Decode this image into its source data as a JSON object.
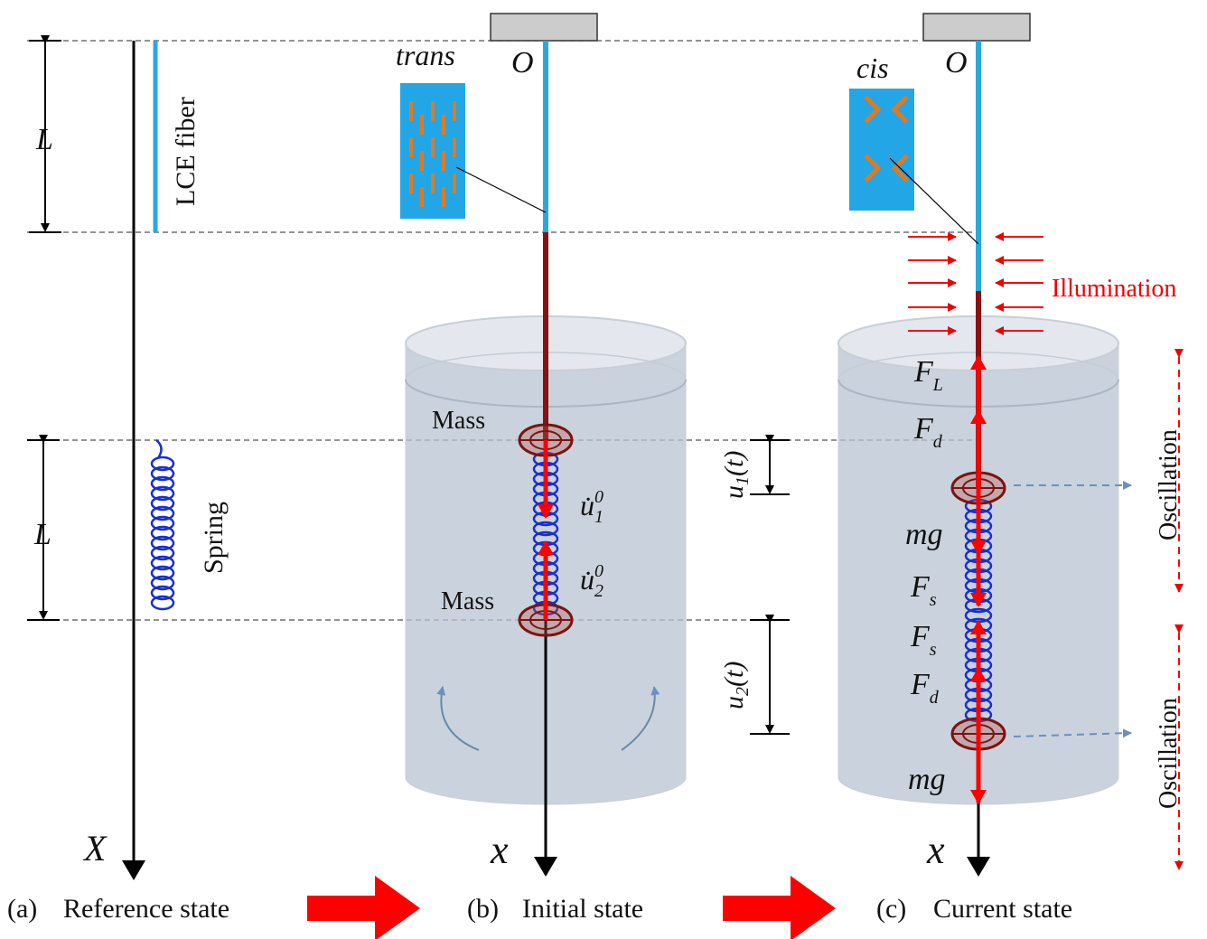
{
  "panels": [
    {
      "caption_tag": "(a)",
      "caption": "Reference state",
      "axis_label": "X",
      "fiber_label": "LCE fiber",
      "spring_label": "Spring",
      "length_labels": [
        "L",
        "L"
      ]
    },
    {
      "caption_tag": "(b)",
      "caption": "Initial state",
      "axis_label": "x",
      "origin_label": "O",
      "molecule_label": "trans",
      "mass_labels": [
        "Mass",
        "Mass"
      ],
      "velocities": [
        {
          "symbol": "u̇",
          "sub": "1",
          "sup": "0"
        },
        {
          "symbol": "u̇",
          "sub": "2",
          "sup": "0"
        }
      ]
    },
    {
      "caption_tag": "(c)",
      "caption": "Current state",
      "axis_label": "x",
      "origin_label": "O",
      "molecule_label": "cis",
      "illumination_label": "Illumination",
      "displacements": [
        {
          "symbol": "u",
          "sub": "1",
          "arg": "(t)"
        },
        {
          "symbol": "u",
          "sub": "2",
          "arg": "(t)"
        }
      ],
      "forces": [
        {
          "symbol": "F",
          "sub": "L"
        },
        {
          "symbol": "F",
          "sub": "d"
        },
        {
          "symbol": "mg"
        },
        {
          "symbol": "F",
          "sub": "s"
        },
        {
          "symbol": "F",
          "sub": "s"
        },
        {
          "symbol": "F",
          "sub": "d"
        },
        {
          "symbol": "mg"
        }
      ],
      "oscillation_labels": [
        "Oscillation",
        "Oscillation"
      ]
    }
  ]
}
